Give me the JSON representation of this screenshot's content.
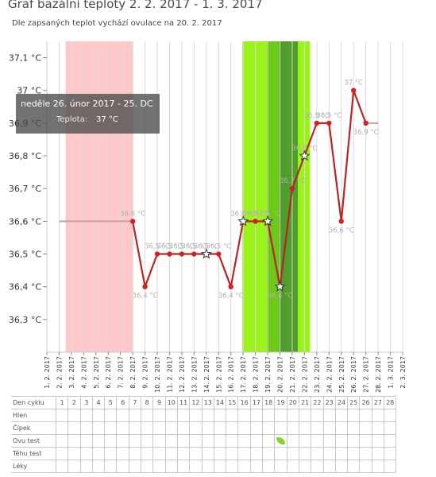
{
  "header": {
    "title": "Graf bazální teploty 2. 2. 2017 - 1. 3. 2017",
    "subtitle": "Dle zapsaných teplot vychází ovulace na 20. 2. 2017"
  },
  "tooltip": {
    "title": "neděle 26. únor 2017 - 25. DC",
    "label": "Teplota:",
    "value": "37 °C"
  },
  "colors": {
    "line": "#b82525",
    "point": "#d42020",
    "flat_line": "#c8a0a0",
    "menstruation_band": "#ffc9c9",
    "fertile_band": "#9cf31a",
    "fertile_dark": "#6ec817",
    "ovulation_band": "#4f9d2a",
    "grid": "#d8d8d8",
    "baseline": "#c8c8c8",
    "leaf": "#8bd23a"
  },
  "chart_data": {
    "type": "line",
    "x_tick_labels": [
      "1. 2. 2017",
      "2. 2. 2017",
      "3. 2. 2017",
      "4. 2. 2017",
      "5. 2. 2017",
      "6. 2. 2017",
      "7. 2. 2017",
      "8. 2. 2017",
      "9. 2. 2017",
      "10. 2. 2017",
      "11. 2. 2017",
      "12. 2. 2017",
      "13. 2. 2017",
      "14. 2. 2017",
      "15. 2. 2017",
      "16. 2. 2017",
      "17. 2. 2017",
      "18. 2. 2017",
      "19. 2. 2017",
      "20. 2. 2017",
      "21. 2. 2017",
      "22. 2. 2017",
      "23. 2. 2017",
      "24. 2. 2017",
      "25. 2. 2017",
      "26. 2. 2017",
      "27. 2. 2017",
      "28. 2. 2017",
      "1. 3. 2017",
      "2. 3. 2017"
    ],
    "y_tick_labels": [
      "37,1 °C",
      "37 °C",
      "36,9 °C",
      "36,8 °C",
      "36,7 °C",
      "36,6 °C",
      "36,5 °C",
      "36,4 °C",
      "36,3 °C"
    ],
    "y_ticks": [
      37.1,
      37.0,
      36.9,
      36.8,
      36.7,
      36.6,
      36.5,
      36.4,
      36.3
    ],
    "ylim": [
      36.2,
      37.15
    ],
    "grid": true,
    "series": [
      {
        "points": [
          {
            "x": "8. 2. 2017",
            "y": 36.6,
            "label": "36,6 °C",
            "marker": "dot"
          },
          {
            "x": "9. 2. 2017",
            "y": 36.4,
            "label": "36,4 °C",
            "marker": "dot"
          },
          {
            "x": "10. 2. 2017",
            "y": 36.5,
            "label": "36,5 °C",
            "marker": "dot"
          },
          {
            "x": "11. 2. 2017",
            "y": 36.5,
            "label": "36,5 °C",
            "marker": "dot"
          },
          {
            "x": "12. 2. 2017",
            "y": 36.5,
            "label": "36,5 °C",
            "marker": "dot"
          },
          {
            "x": "13. 2. 2017",
            "y": 36.5,
            "label": "36,5 °C",
            "marker": "dot"
          },
          {
            "x": "14. 2. 2017",
            "y": 36.5,
            "label": "36,5 °C",
            "marker": "star"
          },
          {
            "x": "15. 2. 2017",
            "y": 36.5,
            "label": "36,5 °C",
            "marker": "dot"
          },
          {
            "x": "16. 2. 2017",
            "y": 36.4,
            "label": "36,4 °C",
            "marker": "dot"
          },
          {
            "x": "17. 2. 2017",
            "y": 36.6,
            "label": "36,6 °C",
            "marker": "star"
          },
          {
            "x": "18. 2. 2017",
            "y": 36.6,
            "label": "36,6 °C",
            "marker": "dot"
          },
          {
            "x": "19. 2. 2017",
            "y": 36.6,
            "label": "36,6 °C",
            "marker": "star"
          },
          {
            "x": "20. 2. 2017",
            "y": 36.4,
            "label": "36,4 °C",
            "marker": "star"
          },
          {
            "x": "21. 2. 2017",
            "y": 36.7,
            "label": "36,7 °C",
            "marker": "dot"
          },
          {
            "x": "22. 2. 2017",
            "y": 36.8,
            "label": "36,8 °C",
            "marker": "star"
          },
          {
            "x": "23. 2. 2017",
            "y": 36.9,
            "label": "36,9 °C",
            "marker": "dot"
          },
          {
            "x": "24. 2. 2017",
            "y": 36.9,
            "label": "36,9 °C",
            "marker": "dot"
          },
          {
            "x": "25. 2. 2017",
            "y": 36.6,
            "label": "36,6 °C",
            "marker": "dot"
          },
          {
            "x": "26. 2. 2017",
            "y": 37.0,
            "label": "37 °C",
            "marker": "dot"
          },
          {
            "x": "27. 2. 2017",
            "y": 36.9,
            "label": "36,9 °C",
            "marker": "dot"
          }
        ]
      }
    ],
    "flat_segments": [
      {
        "from": "2. 2. 2017",
        "to": "8. 2. 2017",
        "y": 36.6
      },
      {
        "from": "27. 2. 2017",
        "to": "28. 2. 2017",
        "y": 36.9
      }
    ],
    "bands": [
      {
        "kind": "menstruation",
        "from": "2. 2. 2017",
        "to": "8. 2. 2017"
      },
      {
        "kind": "fertile",
        "from": "17. 2. 2017",
        "to": "22. 2. 2017"
      },
      {
        "kind": "fertile_dark",
        "from": "19. 2. 2017",
        "to": "21. 2. 2017"
      },
      {
        "kind": "ovulation",
        "from": "20. 2. 2017",
        "to": "21. 2. 2017"
      }
    ]
  },
  "cycle_table": {
    "rows": [
      {
        "label": "Den cyklu",
        "cells": [
          "1",
          "2",
          "3",
          "4",
          "5",
          "6",
          "7",
          "8",
          "9",
          "10",
          "11",
          "12",
          "13",
          "14",
          "15",
          "16",
          "17",
          "18",
          "19",
          "20",
          "21",
          "22",
          "23",
          "24",
          "25",
          "26",
          "27",
          "28"
        ]
      },
      {
        "label": "Hlen",
        "cells": []
      },
      {
        "label": "Čípek",
        "cells": []
      },
      {
        "label": "Ovu test",
        "cells": [],
        "leaf_day": 19
      },
      {
        "label": "Těhu test",
        "cells": []
      },
      {
        "label": "Léky",
        "cells": []
      }
    ]
  }
}
